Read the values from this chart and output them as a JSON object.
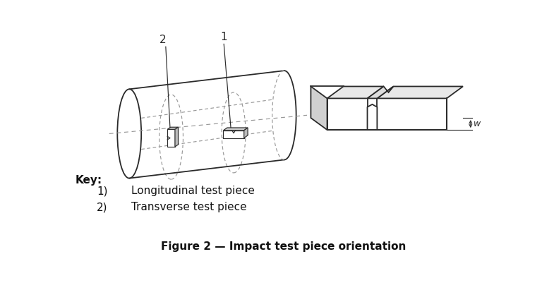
{
  "title": "Figure 2 — Impact test piece orientation",
  "key_title": "Key:",
  "key_items": [
    {
      "number": "1)",
      "label": "Longitudinal test piece"
    },
    {
      "number": "2)",
      "label": "Transverse test piece"
    }
  ],
  "bg_color": "#ffffff",
  "line_color": "#2a2a2a",
  "dashed_color": "#999999",
  "label1": "1",
  "label2": "2",
  "w_label": "w"
}
